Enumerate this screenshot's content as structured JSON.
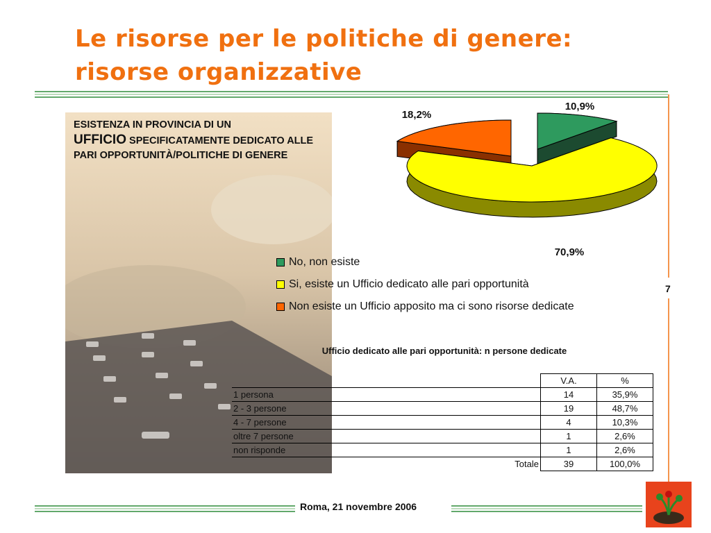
{
  "slide": {
    "title_line1": "Le risorse per le politiche di genere:",
    "title_line2": "risorse organizzative",
    "heading_part1": "ESISTENZA IN PROVINCIA DI UN",
    "heading_big": "UFFICIO",
    "heading_part2": " SPECIFICATAMENTE DEDICATO ALLE PARI OPPORTUNITÀ/POLITICHE DI GENERE",
    "side_number": "7",
    "footer": "Roma, 21 novembre 2006"
  },
  "chart_data": {
    "type": "pie",
    "style": "3d-exploded",
    "series": [
      {
        "name": "No, non esiste",
        "value": 10.9,
        "label": "10,9%",
        "color": "#2e9a5e",
        "side_color": "#1c4a30"
      },
      {
        "name": "Si, esiste un Ufficio dedicato alle pari opportunità",
        "value": 70.9,
        "label": "70,9%",
        "color": "#ffff00",
        "side_color": "#8a8a00"
      },
      {
        "name": "Non esiste un Ufficio apposito ma ci sono risorse dedicate",
        "value": 18.2,
        "label": "18,2%",
        "color": "#ff6600",
        "side_color": "#8a3000"
      }
    ],
    "legend_position": "bottom-left"
  },
  "table": {
    "title": "Ufficio dedicato alle pari opportunità: n persone dedicate",
    "columns": [
      "",
      "V.A.",
      "%"
    ],
    "rows": [
      {
        "label": "1 persona",
        "va": "14",
        "pct": "35,9%"
      },
      {
        "label": "2 - 3 persone",
        "va": "19",
        "pct": "48,7%"
      },
      {
        "label": "4 - 7 persone",
        "va": "4",
        "pct": "10,3%"
      },
      {
        "label": "oltre 7 persone",
        "va": "1",
        "pct": "2,6%"
      },
      {
        "label": "non risponde",
        "va": "1",
        "pct": "2,6%"
      }
    ],
    "total": {
      "label": "Totale",
      "va": "39",
      "pct": "100,0%"
    }
  },
  "colors": {
    "title": "#f07010",
    "rule": "#2e8b3a"
  }
}
